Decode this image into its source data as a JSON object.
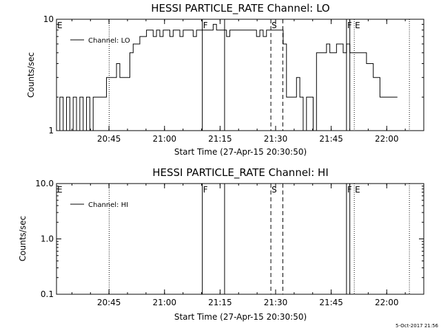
{
  "footer": {
    "timestamp": "5-Oct-2017 21:56"
  },
  "chart_data": [
    {
      "type": "line",
      "title": "HESSI PARTICLE_RATE Channel: LO",
      "xlabel": "Start Time (27-Apr-15 20:30:50)",
      "ylabel": "Counts/sec",
      "xlim": [
        "20:30:50",
        "22:10:00"
      ],
      "ylim": [
        1,
        10
      ],
      "y_scale": "log",
      "x_tick_labels": [
        "20:45",
        "21:00",
        "21:15",
        "21:30",
        "21:45",
        "22:00"
      ],
      "y_tick_labels": [
        "1",
        "10"
      ],
      "legend_position": "top-left",
      "series": [
        {
          "name": "Channel: LO",
          "x": [
            "20:30:50",
            "20:31:44",
            "20:32:38",
            "20:33:32",
            "20:34:26",
            "20:35:20",
            "20:36:14",
            "20:37:08",
            "20:38:02",
            "20:38:56",
            "20:39:50",
            "20:40:44",
            "20:41:38",
            "20:42:32",
            "20:43:26",
            "20:44:20",
            "20:45:14",
            "20:46:08",
            "20:47:02",
            "20:47:56",
            "20:48:50",
            "20:49:44",
            "20:50:38",
            "20:51:32",
            "20:52:26",
            "20:53:20",
            "20:54:14",
            "20:55:08",
            "20:56:02",
            "20:56:56",
            "20:57:50",
            "20:58:44",
            "20:59:38",
            "21:00:32",
            "21:01:26",
            "21:02:20",
            "21:03:14",
            "21:04:08",
            "21:05:02",
            "21:05:56",
            "21:06:50",
            "21:07:44",
            "21:08:38",
            "21:09:32",
            "21:10:26",
            "21:11:20",
            "21:12:14",
            "21:13:08",
            "21:14:02",
            "21:14:56",
            "21:15:50",
            "21:16:44",
            "21:17:38",
            "21:18:32",
            "21:19:26",
            "21:20:20",
            "21:21:14",
            "21:22:08",
            "21:23:02",
            "21:23:56",
            "21:24:50",
            "21:25:44",
            "21:26:38",
            "21:27:32",
            "21:28:26",
            "21:29:20",
            "21:30:14",
            "21:31:08",
            "21:32:02",
            "21:32:56",
            "21:33:50",
            "21:34:44",
            "21:35:38",
            "21:36:32",
            "21:37:26",
            "21:38:20",
            "21:39:14",
            "21:40:08",
            "21:41:02",
            "21:41:56",
            "21:42:50",
            "21:43:44",
            "21:44:38",
            "21:45:32",
            "21:46:26",
            "21:47:20",
            "21:48:14",
            "21:49:08",
            "21:50:02",
            "21:50:56",
            "21:51:50",
            "21:52:44",
            "21:53:38",
            "21:54:32",
            "21:55:28",
            "21:56:22",
            "21:57:16",
            "21:58:10",
            "21:59:04",
            "21:59:58",
            "22:00:52",
            "22:01:46"
          ],
          "y": [
            1,
            2,
            1,
            2,
            1,
            2,
            1,
            2,
            1,
            2,
            1,
            2,
            2,
            2,
            2,
            3,
            3,
            3,
            4,
            3,
            3,
            3,
            5,
            6,
            6,
            7,
            7,
            8,
            8,
            7,
            8,
            7,
            8,
            8,
            7,
            8,
            8,
            7,
            8,
            8,
            8,
            7,
            8,
            8,
            8,
            8,
            8,
            9,
            8,
            8,
            8,
            7,
            8,
            8,
            8,
            8,
            8,
            8,
            8,
            8,
            7,
            8,
            7,
            8,
            8,
            8,
            8,
            8,
            6,
            2,
            2,
            2,
            3,
            2,
            1,
            2,
            2,
            1,
            5,
            5,
            5,
            6,
            5,
            5,
            6,
            6,
            5,
            6,
            5,
            5,
            5,
            5,
            5,
            4,
            4,
            3,
            3,
            2,
            2,
            2,
            2,
            2
          ]
        }
      ],
      "vertical_markers": [
        {
          "label": "E",
          "time": "20:30:50",
          "style": "dotted"
        },
        {
          "label": "",
          "time": "20:45:03",
          "style": "dotted"
        },
        {
          "label": "F",
          "time": "21:10:12",
          "style": "solid"
        },
        {
          "label": "",
          "time": "21:16:13",
          "style": "solid"
        },
        {
          "label": "S",
          "time": "21:28:43",
          "style": "dashed"
        },
        {
          "label": "",
          "time": "21:31:57",
          "style": "dashed"
        },
        {
          "label": "F",
          "time": "21:49:08",
          "style": "solid"
        },
        {
          "label": "",
          "time": "21:50:02",
          "style": "solid"
        },
        {
          "label": "E",
          "time": "21:51:14",
          "style": "dotted"
        },
        {
          "label": "",
          "time": "22:06:07",
          "style": "dotted"
        }
      ]
    },
    {
      "type": "line",
      "title": "HESSI PARTICLE_RATE Channel: HI",
      "xlabel": "Start Time (27-Apr-15 20:30:50)",
      "ylabel": "Counts/sec",
      "xlim": [
        "20:30:50",
        "22:10:00"
      ],
      "ylim": [
        0.1,
        10
      ],
      "y_scale": "log",
      "x_tick_labels": [
        "20:45",
        "21:00",
        "21:15",
        "21:30",
        "21:45",
        "22:00"
      ],
      "y_tick_labels": [
        "0.1",
        "1.0",
        "10.0"
      ],
      "legend_position": "top-left",
      "series": [
        {
          "name": "Channel: HI",
          "x": [],
          "y": []
        }
      ],
      "vertical_markers": [
        {
          "label": "E",
          "time": "20:30:50",
          "style": "dotted"
        },
        {
          "label": "",
          "time": "20:45:03",
          "style": "dotted"
        },
        {
          "label": "F",
          "time": "21:10:12",
          "style": "solid"
        },
        {
          "label": "",
          "time": "21:16:13",
          "style": "solid"
        },
        {
          "label": "S",
          "time": "21:28:43",
          "style": "dashed"
        },
        {
          "label": "",
          "time": "21:31:57",
          "style": "dashed"
        },
        {
          "label": "F",
          "time": "21:49:08",
          "style": "solid"
        },
        {
          "label": "",
          "time": "21:50:02",
          "style": "solid"
        },
        {
          "label": "E",
          "time": "21:51:14",
          "style": "dotted"
        },
        {
          "label": "",
          "time": "22:06:07",
          "style": "dotted"
        }
      ]
    }
  ]
}
